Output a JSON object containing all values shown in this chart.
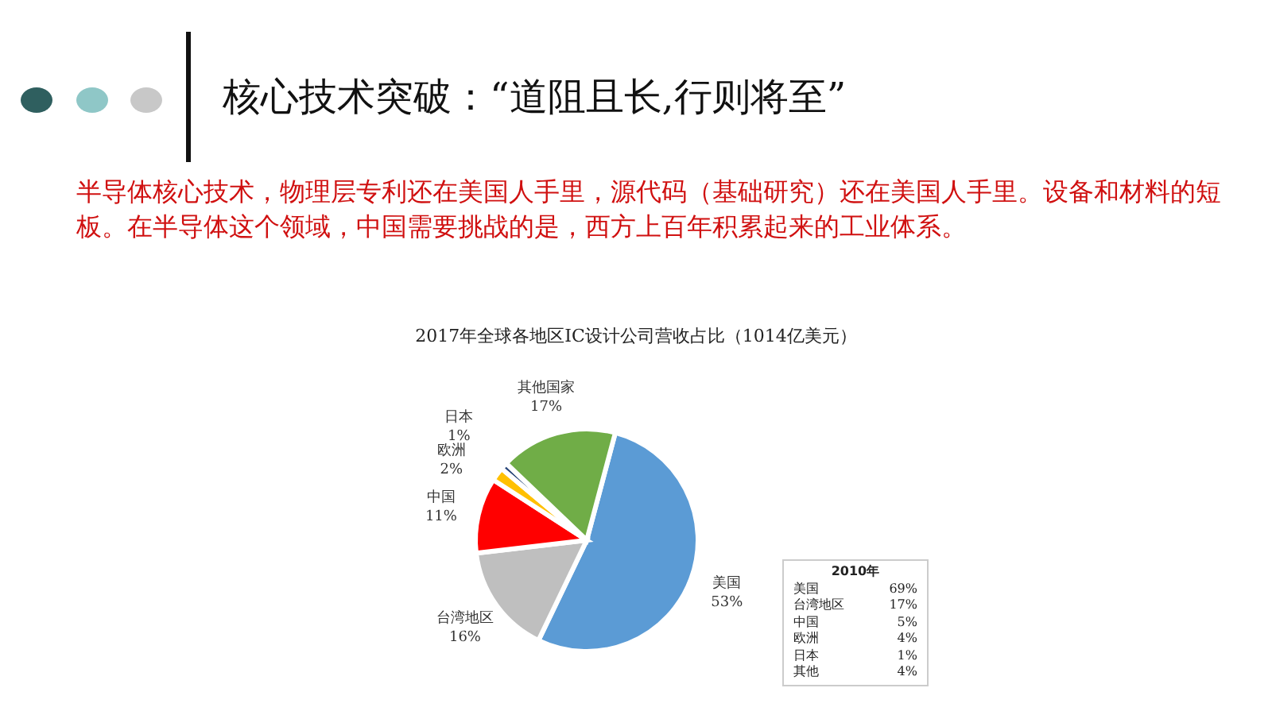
{
  "chart_data": {
    "type": "pie",
    "title": "核心技术突破：“道阻且长,行则将至”",
    "subtitle": "半导体核心技术，物理层专利还在美国人手里，源代码（基础研究）还在美国人手里。设备和材料的短板。在半导体这个领域，中国需要挑战的是，西方上百年积累起来的工业体系。",
    "categories": [
      "美国",
      "台湾地区",
      "中国",
      "欧洲",
      "日本",
      "其他国家"
    ],
    "values": [
      53,
      16,
      11,
      2,
      1,
      17
    ],
    "value_labels": [
      "53%",
      "16%",
      "11%",
      "2%",
      "1%",
      "17%"
    ],
    "colors": [
      "#5b9bd5",
      "#bfbfbf",
      "#ff0000",
      "#ffc000",
      "#264478",
      "#70ad47"
    ],
    "annotations": [
      "2017年全球各地区IC设计公司营收占比（1014亿美元）",
      "2010年",
      "美国 69%",
      "台湾地区 17%",
      "中国 5%",
      "欧洲 4%",
      "日本 1%",
      "其他 4%"
    ]
  }
}
